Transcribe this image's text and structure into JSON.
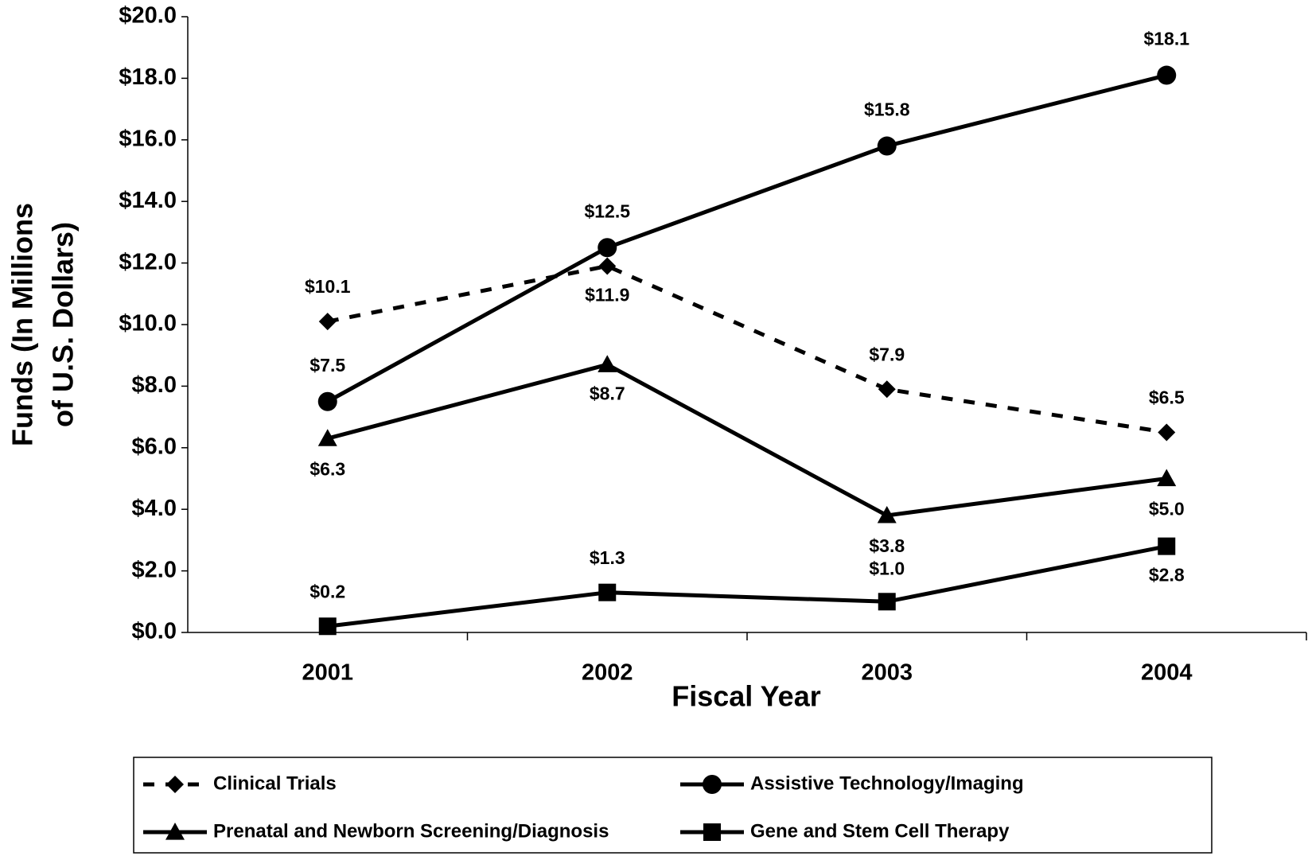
{
  "chart_data": {
    "type": "line",
    "categories": [
      "2001",
      "2002",
      "2003",
      "2004"
    ],
    "xlabel": "Fiscal Year",
    "ylabel": [
      "Funds (In Millions",
      "of U.S. Dollars)"
    ],
    "ylim": [
      0,
      20
    ],
    "yticks": [
      {
        "value": 0,
        "label": "$0.0"
      },
      {
        "value": 2,
        "label": "$2.0"
      },
      {
        "value": 4,
        "label": "$4.0"
      },
      {
        "value": 6,
        "label": "$6.0"
      },
      {
        "value": 8,
        "label": "$8.0"
      },
      {
        "value": 10,
        "label": "$10.0"
      },
      {
        "value": 12,
        "label": "$12.0"
      },
      {
        "value": 14,
        "label": "$14.0"
      },
      {
        "value": 16,
        "label": "$16.0"
      },
      {
        "value": 18,
        "label": "$18.0"
      },
      {
        "value": 20,
        "label": "$20.0"
      }
    ],
    "series": [
      {
        "name": "Clinical Trials",
        "color": "#000000",
        "dashed": true,
        "marker": "diamond",
        "values": [
          10.1,
          11.9,
          7.9,
          6.5
        ],
        "value_labels": [
          "$10.1",
          "$11.9",
          "$7.9",
          "$6.5"
        ]
      },
      {
        "name": "Assistive Technology/Imaging",
        "color": "#000000",
        "marker": "circle",
        "values": [
          7.5,
          12.5,
          15.8,
          18.1
        ],
        "value_labels": [
          "$7.5",
          "$12.5",
          "$15.8",
          "$18.1"
        ]
      },
      {
        "name": "Prenatal and Newborn Screening/Diagnosis",
        "color": "#000000",
        "marker": "triangle",
        "values": [
          6.3,
          8.7,
          3.8,
          5.0
        ],
        "value_labels": [
          "$6.3",
          "$8.7",
          "$3.8",
          "$5.0"
        ]
      },
      {
        "name": "Gene and Stem Cell Therapy",
        "color": "#000000",
        "marker": "square",
        "values": [
          0.2,
          1.3,
          1.0,
          2.8
        ],
        "value_labels": [
          "$0.2",
          "$1.3",
          "$1.0",
          "$2.8"
        ]
      }
    ],
    "legend": "bottom"
  }
}
